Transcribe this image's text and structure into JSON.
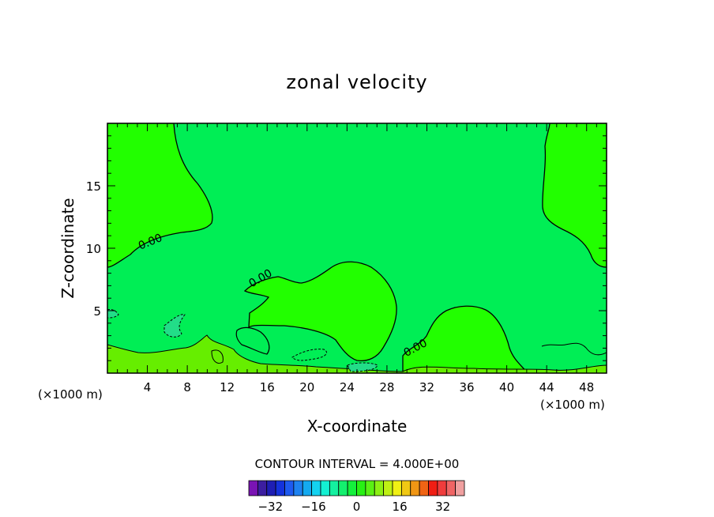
{
  "chart_data": {
    "type": "contour",
    "title": "zonal velocity",
    "xlabel": "X-coordinate",
    "ylabel": "Z-coordinate",
    "x_units_left": "(×1000 m)",
    "x_units_right": "(×1000 m)",
    "xlim": [
      0,
      50
    ],
    "ylim": [
      0,
      20
    ],
    "x_ticks": [
      4,
      8,
      12,
      16,
      20,
      24,
      28,
      32,
      36,
      40,
      44,
      48
    ],
    "y_ticks": [
      5,
      10,
      15
    ],
    "contour_labels": [
      "0.00",
      "0.00",
      "0.00"
    ],
    "contour_interval_text": "CONTOUR INTERVAL = 4.000E+00",
    "colorbar": {
      "tick_labels": [
        "-32",
        "-16",
        "0",
        "16",
        "32"
      ],
      "tick_values": [
        -32,
        -16,
        0,
        16,
        32
      ],
      "range": [
        -40,
        40
      ],
      "step": 4,
      "colors": [
        "#7a14b4",
        "#3c1ea0",
        "#1e1eb4",
        "#1432dc",
        "#1e5af0",
        "#1e82f0",
        "#14aaf0",
        "#14d2f0",
        "#14f0d2",
        "#14f0a0",
        "#14f06e",
        "#14f03c",
        "#28f014",
        "#5af014",
        "#8cf014",
        "#bef014",
        "#f0f014",
        "#f0c814",
        "#f09614",
        "#f06414",
        "#f01e14",
        "#f03c3c",
        "#f06464",
        "#f0a0a0"
      ]
    },
    "regions": [
      {
        "name": "background",
        "level": "-4 to 0",
        "color": "#00ee55"
      },
      {
        "name": "upper-left",
        "level": "0 to 4",
        "color": "#22ff00"
      },
      {
        "name": "upper-right",
        "level": "0 to 4",
        "color": "#22ff00"
      },
      {
        "name": "central-lobe",
        "level": "0 to 4",
        "color": "#22ff00"
      },
      {
        "name": "right-lobe",
        "level": "0 to 4",
        "color": "#22ff00"
      },
      {
        "name": "near-surface",
        "level": "4 to 8",
        "color": "#66ee00"
      },
      {
        "name": "negative-patches",
        "level": "-8 to -4",
        "color": "#22dd88"
      }
    ]
  }
}
